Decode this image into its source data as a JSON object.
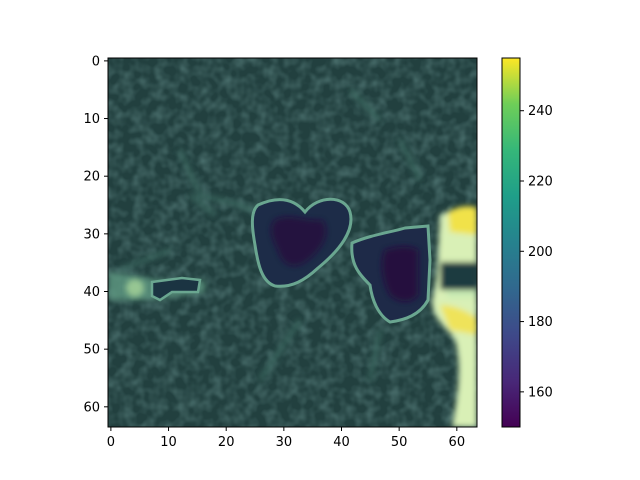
{
  "chart_data": {
    "type": "heatmap",
    "title": "",
    "xlabel": "",
    "ylabel": "",
    "image_shape": [
      64,
      64
    ],
    "colormap": "viridis",
    "xlim": [
      -0.5,
      63.5
    ],
    "ylim": [
      63.5,
      -0.5
    ],
    "x_ticks": [
      0,
      10,
      20,
      30,
      40,
      50,
      60
    ],
    "y_ticks": [
      0,
      10,
      20,
      30,
      40,
      50,
      60
    ],
    "colorbar": {
      "range": [
        150,
        255
      ],
      "ticks": [
        160,
        180,
        200,
        220,
        240
      ]
    },
    "colors": {
      "background": "#22403f",
      "dark_region": "#260a3f",
      "outline": "#5f9e86",
      "bright": "#e8f5c0",
      "bright_yellow": "#f1e24a"
    },
    "features": [
      {
        "kind": "dark-heart-blob",
        "center_x": 31,
        "center_y": 31,
        "value_min": 150
      },
      {
        "kind": "dark-diamond-blob",
        "center_x": 49,
        "center_y": 40,
        "value_min": 150
      },
      {
        "kind": "small-dark-blob",
        "center_x": 12,
        "center_y": 39,
        "value_min": 160
      },
      {
        "kind": "bright-region",
        "center_x": 60,
        "center_y": 40,
        "value_max": 255
      }
    ]
  }
}
